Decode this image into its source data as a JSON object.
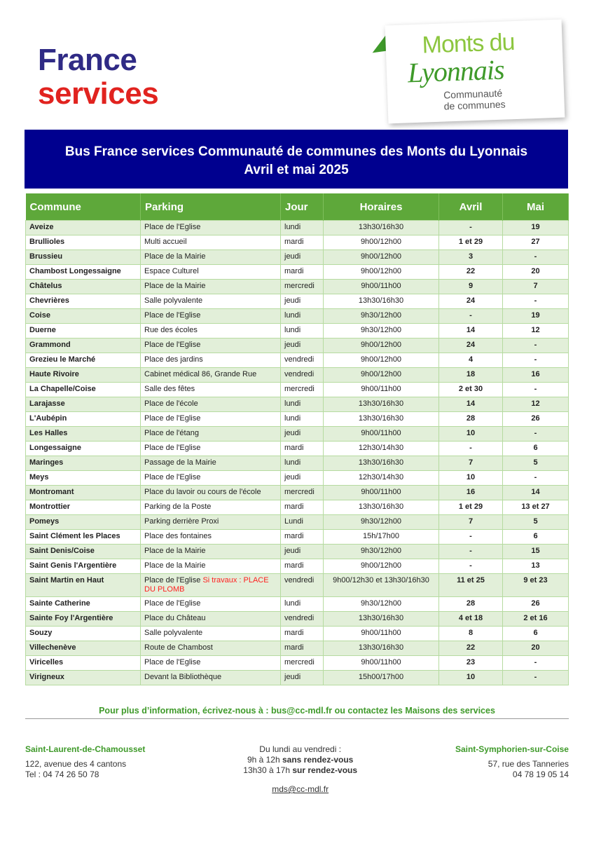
{
  "logos": {
    "france_services": [
      "France",
      "services"
    ],
    "monts_du_lyonnais": [
      "Monts du",
      "Lyonnais",
      "Communauté",
      "de communes"
    ],
    "colors": {
      "navy": "#2f2a85",
      "red": "#e1231f",
      "green": "#3f9a2a",
      "light_green": "#8cc63f"
    }
  },
  "banner": {
    "title": "Bus France services Communauté de communes des Monts du Lyonnais",
    "subtitle": "Avril et mai 2025",
    "color": "#00008f"
  },
  "table": {
    "header_color": "#5ea83a",
    "columns": [
      "Commune",
      "Parking",
      "Jour",
      "Horaires",
      "Avril",
      "Mai"
    ],
    "rows": [
      {
        "commune": "Aveize",
        "parking": "Place de l'Eglise",
        "jour": "lundi",
        "horaires": "13h30/16h30",
        "avril": "-",
        "mai": "19"
      },
      {
        "commune": "Brullioles",
        "parking": "Multi accueil",
        "jour": "mardi",
        "horaires": "9h00/12h00",
        "avril": "1 et 29",
        "mai": "27"
      },
      {
        "commune": "Brussieu",
        "parking": "Place de la Mairie",
        "jour": "jeudi",
        "horaires": "9h00/12h00",
        "avril": "3",
        "mai": "-"
      },
      {
        "commune": "Chambost Longessaigne",
        "parking": "Espace Culturel",
        "jour": "mardi",
        "horaires": "9h00/12h00",
        "avril": "22",
        "mai": "20"
      },
      {
        "commune": "Châtelus",
        "parking": "Place de la Mairie",
        "jour": "mercredi",
        "horaires": "9h00/11h00",
        "avril": "9",
        "mai": "7"
      },
      {
        "commune": "Chevrières",
        "parking": "Salle polyvalente",
        "jour": "jeudi",
        "horaires": "13h30/16h30",
        "avril": "24",
        "mai": "-"
      },
      {
        "commune": "Coise",
        "parking": "Place de l'Eglise",
        "jour": "lundi",
        "horaires": "9h30/12h00",
        "avril": "-",
        "mai": "19"
      },
      {
        "commune": "Duerne",
        "parking": "Rue des écoles",
        "jour": "lundi",
        "horaires": "9h30/12h00",
        "avril": "14",
        "mai": "12"
      },
      {
        "commune": "Grammond",
        "parking": "Place de l'Eglise",
        "jour": "jeudi",
        "horaires": "9h00/12h00",
        "avril": "24",
        "mai": "-"
      },
      {
        "commune": "Grezieu le Marché",
        "parking": "Place des jardins",
        "jour": "vendredi",
        "horaires": "9h00/12h00",
        "avril": "4",
        "mai": "-"
      },
      {
        "commune": "Haute Rivoire",
        "parking": "Cabinet médical 86, Grande Rue",
        "jour": "vendredi",
        "horaires": "9h00/12h00",
        "avril": "18",
        "mai": "16"
      },
      {
        "commune": "La Chapelle/Coise",
        "parking": "Salle des fêtes",
        "jour": "mercredi",
        "horaires": "9h00/11h00",
        "avril": "2 et 30",
        "mai": "-"
      },
      {
        "commune": "Larajasse",
        "parking": "Place de l'école",
        "jour": "lundi",
        "horaires": "13h30/16h30",
        "avril": "14",
        "mai": "12"
      },
      {
        "commune": "L'Aubépin",
        "parking": "Place de l'Eglise",
        "jour": "lundi",
        "horaires": "13h30/16h30",
        "avril": "28",
        "mai": "26"
      },
      {
        "commune": "Les Halles",
        "parking": "Place de l'étang",
        "jour": "jeudi",
        "horaires": "9h00/11h00",
        "avril": "10",
        "mai": "-"
      },
      {
        "commune": "Longessaigne",
        "parking": "Place de l'Eglise",
        "jour": "mardi",
        "horaires": "12h30/14h30",
        "avril": "-",
        "mai": "6"
      },
      {
        "commune": "Maringes",
        "parking": "Passage de la Mairie",
        "jour": "lundi",
        "horaires": "13h30/16h30",
        "avril": "7",
        "mai": "5"
      },
      {
        "commune": "Meys",
        "parking": "Place de l'Eglise",
        "jour": "jeudi",
        "horaires": "12h30/14h30",
        "avril": "10",
        "mai": "-"
      },
      {
        "commune": "Montromant",
        "parking": "Place du lavoir ou cours de l'école",
        "jour": "mercredi",
        "horaires": "9h00/11h00",
        "avril": "16",
        "mai": "14"
      },
      {
        "commune": "Montrottier",
        "parking": "Parking de la Poste",
        "jour": "mardi",
        "horaires": "13h30/16h30",
        "avril": "1 et 29",
        "mai": "13 et 27"
      },
      {
        "commune": "Pomeys",
        "parking": "Parking derrière Proxi",
        "jour": "Lundi",
        "horaires": "9h30/12h00",
        "avril": "7",
        "mai": "5"
      },
      {
        "commune": "Saint Clément les Places",
        "parking": "Place des fontaines",
        "jour": "mardi",
        "horaires": "15h/17h00",
        "avril": "-",
        "mai": "6"
      },
      {
        "commune": "Saint Denis/Coise",
        "parking": "Place de la Mairie",
        "jour": "jeudi",
        "horaires": "9h30/12h00",
        "avril": "-",
        "mai": "15"
      },
      {
        "commune": "Saint Genis l'Argentière",
        "parking": "Place de la Mairie",
        "jour": "mardi",
        "horaires": "9h00/12h00",
        "avril": "-",
        "mai": "13"
      },
      {
        "commune": "Saint Martin en Haut",
        "parking": "Place de l'Eglise",
        "parking_note": "Si travaux : PLACE DU PLOMB",
        "jour": "vendredi",
        "horaires": "9h00/12h30 et 13h30/16h30",
        "avril": "11 et 25",
        "mai": "9 et 23"
      },
      {
        "commune": "Sainte Catherine",
        "parking": "Place de l'Eglise",
        "jour": "lundi",
        "horaires": "9h30/12h00",
        "avril": "28",
        "mai": "26"
      },
      {
        "commune": "Sainte Foy l'Argentière",
        "parking": "Place du Château",
        "jour": "vendredi",
        "horaires": "13h30/16h30",
        "avril": "4 et 18",
        "mai": "2 et 16"
      },
      {
        "commune": "Souzy",
        "parking": "Salle polyvalente",
        "jour": "mardi",
        "horaires": "9h00/11h00",
        "avril": "8",
        "mai": "6"
      },
      {
        "commune": "Villechenève",
        "parking": "Route de Chambost",
        "jour": "mardi",
        "horaires": "13h30/16h30",
        "avril": "22",
        "mai": "20"
      },
      {
        "commune": "Viricelles",
        "parking": "Place de l'Eglise",
        "jour": "mercredi",
        "horaires": "9h00/11h00",
        "avril": "23",
        "mai": "-"
      },
      {
        "commune": "Virigneux",
        "parking": "Devant la Bibliothèque",
        "jour": "jeudi",
        "horaires": "15h00/17h00",
        "avril": "10",
        "mai": "-"
      }
    ]
  },
  "info_line": "Pour plus d’information, écrivez-nous à : bus@cc-mdl.fr ou contactez les Maisons des services",
  "footer": {
    "left": {
      "title": "Saint-Laurent-de-Chamousset",
      "address": "122, avenue des 4 cantons",
      "phone": "Tel : 04 74 26 50 78"
    },
    "center": {
      "line1": "Du lundi au vendredi :",
      "line2_a": "9h à 12h ",
      "line2_b": "sans rendez-vous",
      "line3_a": "13h30 à 17h ",
      "line3_b": "sur rendez-vous",
      "email": "mds@cc-mdl.fr"
    },
    "right": {
      "title": "Saint-Symphorien-sur-Coise",
      "address": "57, rue des Tanneries",
      "phone": "04 78 19 05 14"
    }
  }
}
